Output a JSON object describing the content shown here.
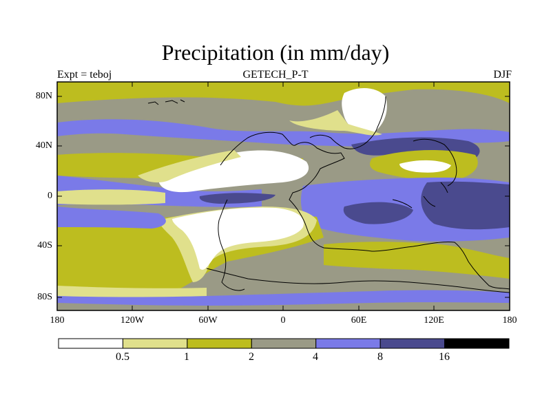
{
  "title": "Precipitation (in mm/day)",
  "subtitle_left": "Expt = teboj",
  "subtitle_center": "GETECH_P-T",
  "subtitle_right": "DJF",
  "lat_ticks": [
    "80N",
    "40N",
    "0",
    "40S",
    "80S"
  ],
  "lon_ticks": [
    "180",
    "120W",
    "60W",
    "0",
    "60E",
    "120E",
    "180"
  ],
  "colorbar": {
    "labels": [
      "0.5",
      "1",
      "2",
      "4",
      "8",
      "16"
    ],
    "colors": [
      "#ffffff",
      "#e0e08c",
      "#bdbd1f",
      "#9a9a86",
      "#7a7ae8",
      "#4a4a8e",
      "#000000"
    ]
  },
  "palette": {
    "white": "#ffffff",
    "pale": "#e0e08c",
    "olive": "#bdbd1f",
    "gray": "#9a9a86",
    "blue": "#7a7ae8",
    "navy": "#4a4a8e"
  }
}
